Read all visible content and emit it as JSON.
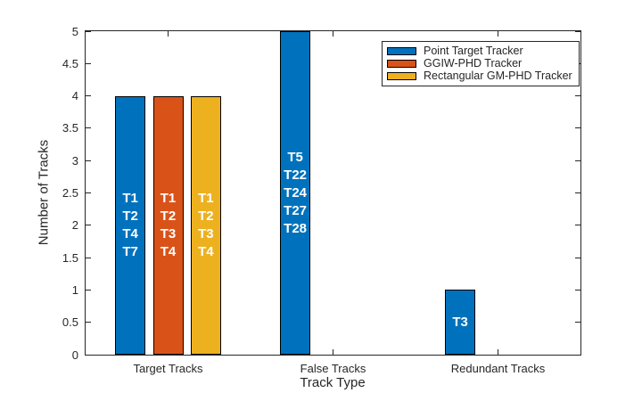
{
  "chart_data": {
    "type": "bar",
    "title": "",
    "xlabel": "Track Type",
    "ylabel": "Number of Tracks",
    "categories": [
      "Target Tracks",
      "False Tracks",
      "Redundant Tracks"
    ],
    "series": [
      {
        "name": "Point Target Tracker",
        "color": "#0072BD",
        "values": [
          4,
          5,
          1
        ],
        "bar_labels": [
          [
            "T1",
            "T2",
            "T4",
            "T7"
          ],
          [
            "T5",
            "T22",
            "T24",
            "T27",
            "T28"
          ],
          [
            "T3"
          ]
        ]
      },
      {
        "name": "GGIW-PHD Tracker",
        "color": "#D95319",
        "values": [
          4,
          0,
          0
        ],
        "bar_labels": [
          [
            "T1",
            "T2",
            "T3",
            "T4"
          ],
          [],
          []
        ]
      },
      {
        "name": "Rectangular GM-PHD Tracker",
        "color": "#EDB120",
        "values": [
          4,
          0,
          0
        ],
        "bar_labels": [
          [
            "T1",
            "T2",
            "T3",
            "T4"
          ],
          [],
          []
        ]
      }
    ],
    "ylim": [
      0,
      5
    ],
    "yticks": [
      "0",
      "0.5",
      "1",
      "1.5",
      "2",
      "2.5",
      "3",
      "3.5",
      "4",
      "4.5",
      "5"
    ],
    "grid": false,
    "legend_position": "northeast",
    "axis_color": "#262626",
    "bar_edge_color": "#000000",
    "bar_label_color": "#ffffff",
    "background": "#ffffff"
  }
}
